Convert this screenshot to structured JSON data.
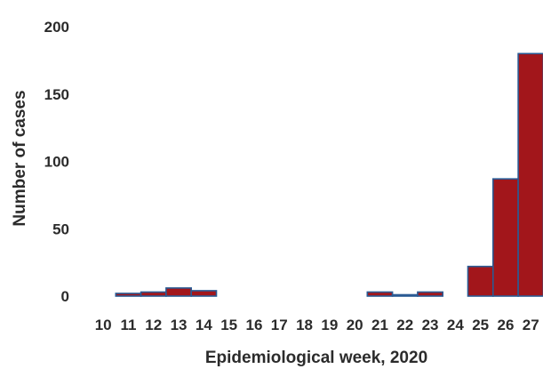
{
  "chart_data": {
    "type": "bar",
    "title": "",
    "xlabel": "Epidemiological week, 2020",
    "ylabel": "Number of cases",
    "ylim": [
      0,
      200
    ],
    "yticks": [
      "0",
      "50",
      "100",
      "150",
      "200"
    ],
    "categories": [
      "10",
      "11",
      "12",
      "13",
      "14",
      "15",
      "16",
      "17",
      "18",
      "19",
      "20",
      "21",
      "22",
      "23",
      "24",
      "25",
      "26",
      "27"
    ],
    "values": [
      0,
      2,
      3,
      6,
      4,
      0,
      0,
      0,
      0,
      0,
      0,
      3,
      1,
      3,
      0,
      22,
      87,
      180
    ],
    "grid": false,
    "legend": "none",
    "colors": {
      "bar_fill": "#a2161b",
      "bar_edge": "#2a5a93",
      "text": "#2b2b2b"
    }
  }
}
